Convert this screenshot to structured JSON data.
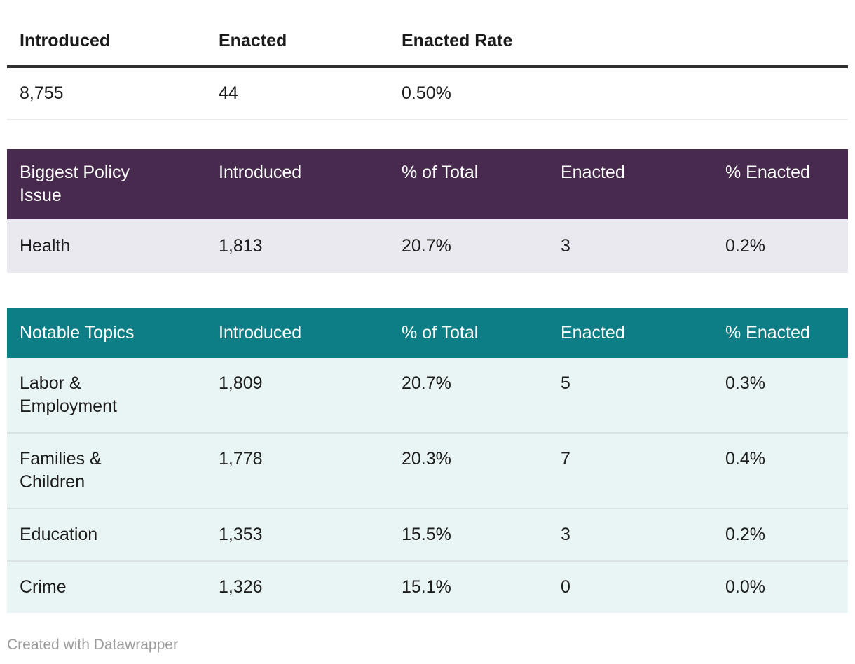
{
  "colors": {
    "summary_rule": "#303030",
    "summary_row_separator": "#ececec",
    "policy_header_bg": "#472a4d",
    "policy_row_bg": "#eae9f0",
    "topics_header_bg": "#0d7e86",
    "topics_row_bg": "#e9f4f5",
    "topics_row_separator": "#dbe2e3",
    "header_text": "#ffffff",
    "body_text": "#1d1d1d",
    "credit_text": "#9c9c9c"
  },
  "chart_data": [
    {
      "type": "table",
      "columns": [
        "Introduced",
        "Enacted",
        "Enacted Rate"
      ],
      "rows": [
        [
          "8,755",
          "44",
          "0.50%"
        ]
      ]
    },
    {
      "type": "table",
      "columns": [
        "Biggest Policy Issue",
        "Introduced",
        "% of Total",
        "Enacted",
        "% Enacted"
      ],
      "rows": [
        [
          "Health",
          "1,813",
          "20.7%",
          "3",
          "0.2%"
        ]
      ]
    },
    {
      "type": "table",
      "columns": [
        "Notable Topics",
        "Introduced",
        "% of Total",
        "Enacted",
        "% Enacted"
      ],
      "rows": [
        [
          "Labor & Employment",
          "1,809",
          "20.7%",
          "5",
          "0.3%"
        ],
        [
          "Families & Children",
          "1,778",
          "20.3%",
          "7",
          "0.4%"
        ],
        [
          "Education",
          "1,353",
          "15.5%",
          "3",
          "0.2%"
        ],
        [
          "Crime",
          "1,326",
          "15.1%",
          "0",
          "0.0%"
        ]
      ]
    }
  ],
  "footer": {
    "credit": "Created with Datawrapper"
  }
}
